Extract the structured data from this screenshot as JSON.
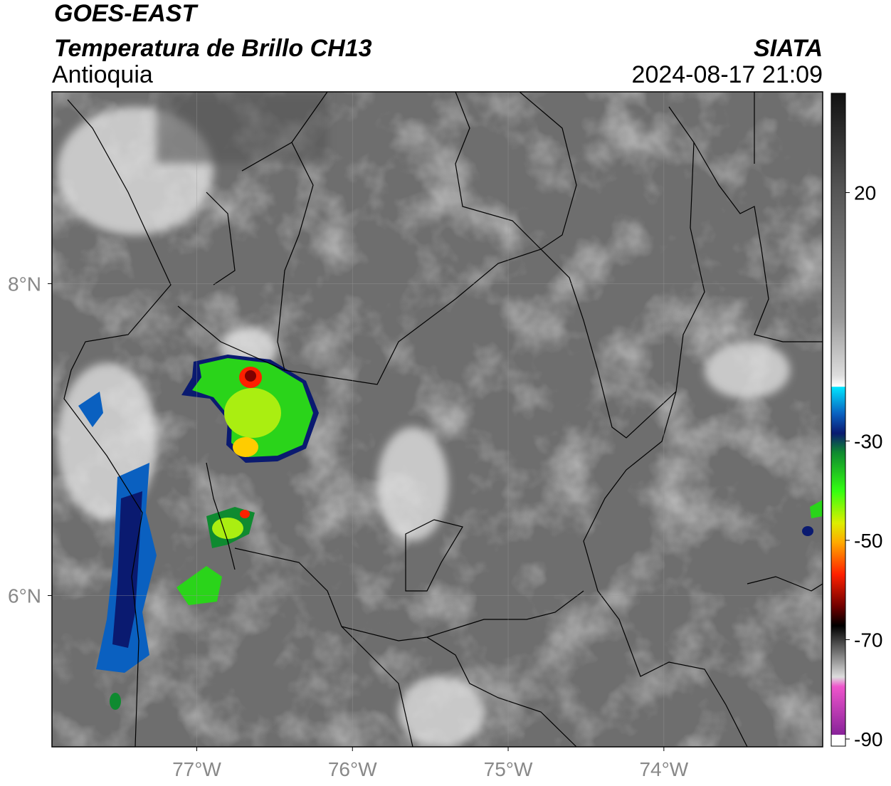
{
  "header": {
    "satellite": "GOES-EAST",
    "product": "Temperatura de Brillo CH13",
    "region": "Antioquia",
    "agency": "SIATA",
    "datetime": "2024-08-17 21:09"
  },
  "map": {
    "xlim": [
      -77.93,
      -72.98
    ],
    "ylim": [
      5.03,
      9.23
    ],
    "xticks": [
      {
        "value": -77,
        "label": "77°W"
      },
      {
        "value": -76,
        "label": "76°W"
      },
      {
        "value": -75,
        "label": "75°W"
      },
      {
        "value": -74,
        "label": "74°W"
      }
    ],
    "yticks": [
      {
        "value": 8,
        "label": "8°N"
      },
      {
        "value": 6,
        "label": "6°N"
      }
    ],
    "grid": true
  },
  "colorbar": {
    "lim": [
      -90,
      40
    ],
    "ticks": [
      20,
      -30,
      -50,
      -70,
      -90
    ]
  }
}
